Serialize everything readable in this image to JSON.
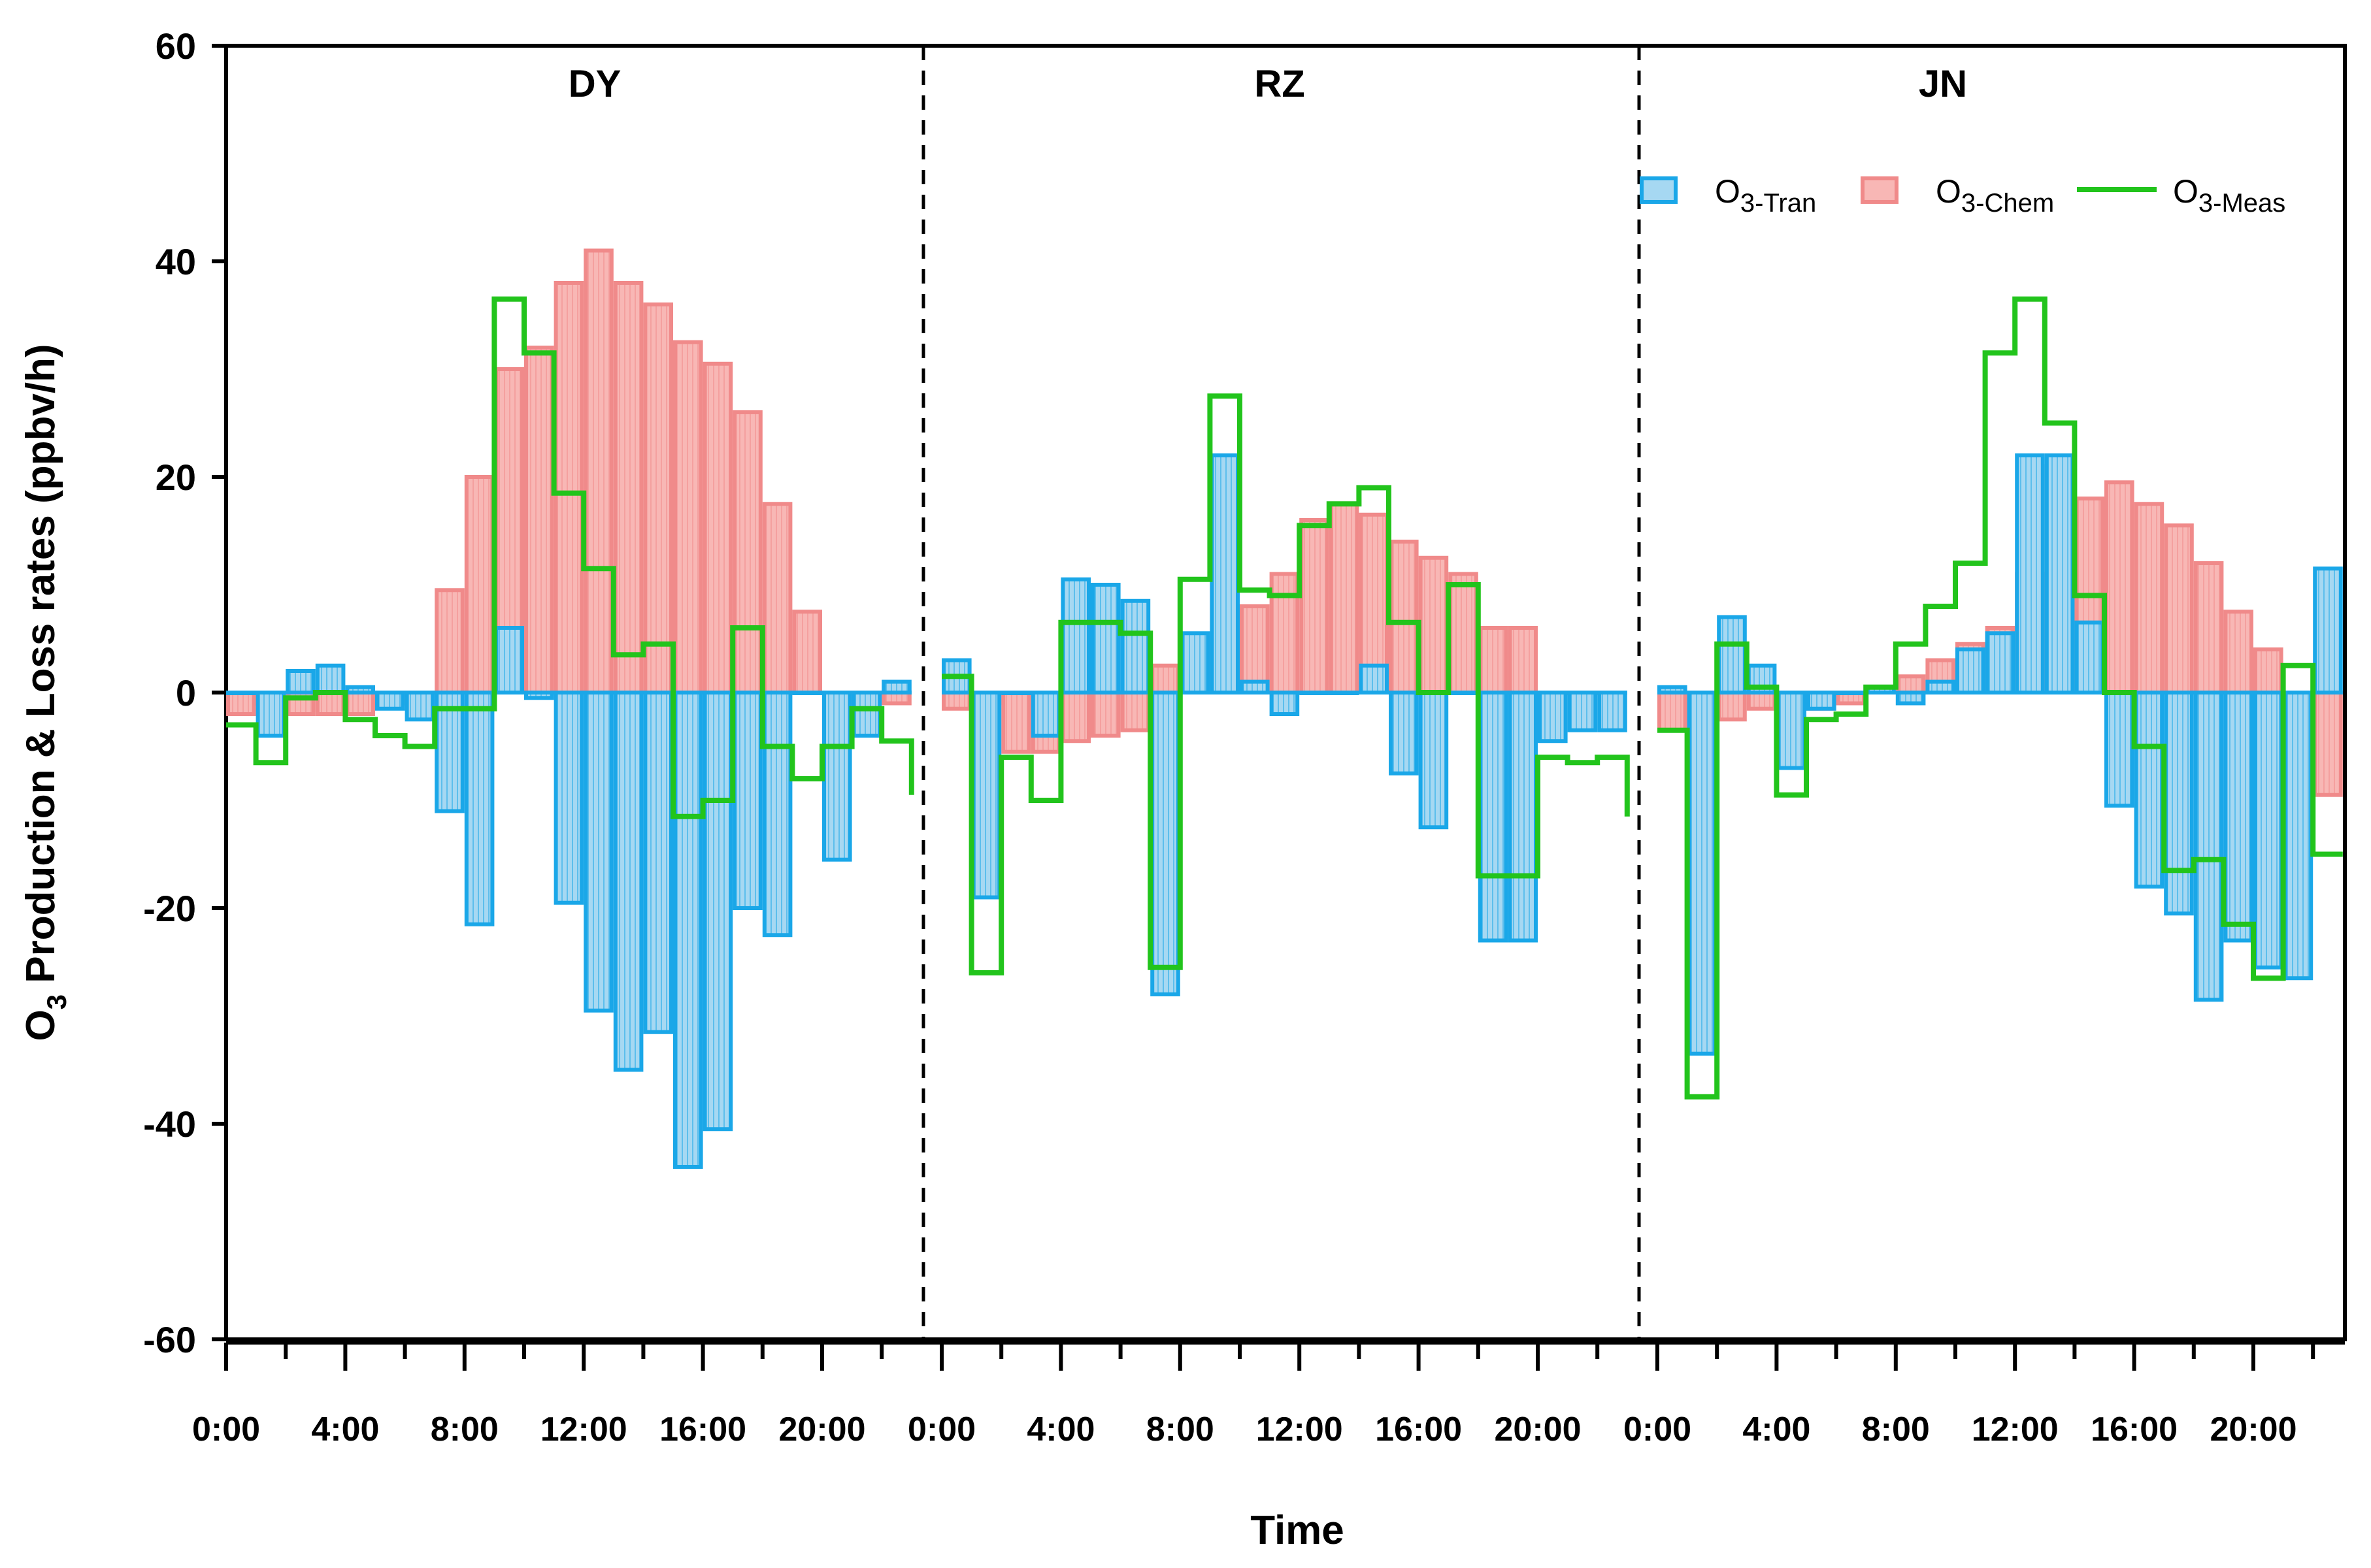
{
  "chart_data": {
    "type": "bar",
    "title": "",
    "xlabel": "Time",
    "ylabel_main": "O",
    "ylabel_sub": "3",
    "ylabel_rest": " Production & Loss rates (ppbv/h)",
    "ylim": [
      -60,
      60
    ],
    "yticks": [
      60,
      40,
      20,
      0,
      -20,
      -40,
      -60
    ],
    "xtick_labels": [
      "0:00",
      "4:00",
      "8:00",
      "12:00",
      "16:00",
      "20:00"
    ],
    "hours": [
      0,
      1,
      2,
      3,
      4,
      5,
      6,
      7,
      8,
      9,
      10,
      11,
      12,
      13,
      14,
      15,
      16,
      17,
      18,
      19,
      20,
      21,
      22
    ],
    "legend": {
      "position": "top-right",
      "items": [
        {
          "main": "O",
          "sub": "3-Tran",
          "kind": "bar",
          "color": "#1aa7e8"
        },
        {
          "main": "O",
          "sub": "3-Chem",
          "kind": "bar",
          "color": "#f08a8a"
        },
        {
          "main": "O",
          "sub": "3-Meas",
          "kind": "line",
          "color": "#22c41c"
        }
      ]
    },
    "colors": {
      "tran_fill": "#a6d8f2",
      "tran_edge": "#1aa7e8",
      "chem_fill": "#f8b7b5",
      "chem_edge": "#f08a8a",
      "meas": "#22c41c"
    },
    "panels": [
      {
        "name": "DY",
        "chem": [
          -2,
          -1,
          -2,
          -2,
          -2,
          -1,
          -1,
          9.5,
          20,
          30,
          32,
          38,
          41,
          38,
          36,
          32.5,
          30.5,
          26,
          17.5,
          7.5,
          0,
          -1,
          -1
        ],
        "tran": [
          0,
          -4,
          2,
          2.5,
          0.5,
          -1.5,
          -2.5,
          -11,
          -21.5,
          6,
          -0.5,
          -19.5,
          -29.5,
          -35,
          -31.5,
          -44,
          -40.5,
          -20,
          -22.5,
          0,
          -15.5,
          -4,
          1
        ],
        "meas": [
          -3,
          -6.5,
          -0.5,
          0,
          -2.5,
          -4,
          -5,
          -1.5,
          -1.5,
          36.5,
          31.5,
          18.5,
          11.5,
          3.5,
          4.5,
          -11.5,
          -10,
          6,
          -5,
          -8,
          -5,
          -1.5,
          -4.5
        ],
        "meas_end": -9.5
      },
      {
        "name": "RZ",
        "chem": [
          -1.5,
          -1,
          -5.5,
          -5.5,
          -4.5,
          -4,
          -3.5,
          2.5,
          5,
          20,
          8,
          11,
          16,
          17.5,
          16.5,
          14,
          12.5,
          11,
          6,
          6,
          0,
          0,
          0
        ],
        "tran": [
          3,
          -19,
          0,
          -4,
          10.5,
          10,
          8.5,
          -28,
          5.5,
          22,
          1,
          -2,
          0,
          0,
          2.5,
          -7.5,
          -12.5,
          0,
          -23,
          -23,
          -4.5,
          -3.5,
          -3.5
        ],
        "meas": [
          1.5,
          -26,
          -6,
          -10,
          6.5,
          6.5,
          5.5,
          -25.5,
          10.5,
          27.5,
          9.5,
          9,
          15.5,
          17.5,
          19,
          6.5,
          0,
          10,
          -17,
          -17,
          -6,
          -6.5,
          -6
        ],
        "meas_end": -11.5
      },
      {
        "name": "JN",
        "chem": [
          -3.5,
          -3.5,
          -2.5,
          -1.5,
          -2,
          -1.5,
          -1,
          0.5,
          1.5,
          3,
          4.5,
          6,
          11,
          21,
          18,
          19.5,
          17.5,
          15.5,
          12,
          7.5,
          4,
          0,
          -9.5
        ],
        "tran": [
          0.5,
          -33.5,
          7,
          2.5,
          -7,
          -1.5,
          0,
          0.5,
          -1,
          1,
          4,
          5.5,
          22,
          22,
          6.5,
          -10.5,
          -18,
          -20.5,
          -28.5,
          -23,
          -25.5,
          -26.5,
          11.5
        ],
        "meas": [
          -3.5,
          -37.5,
          4.5,
          0.5,
          -9.5,
          -2.5,
          -2,
          0.5,
          4.5,
          8,
          12,
          31.5,
          36.5,
          25,
          9,
          0,
          -5,
          -16.5,
          -15.5,
          -21.5,
          -26.5,
          2.5,
          -15
        ],
        "meas_end": -15
      }
    ]
  }
}
